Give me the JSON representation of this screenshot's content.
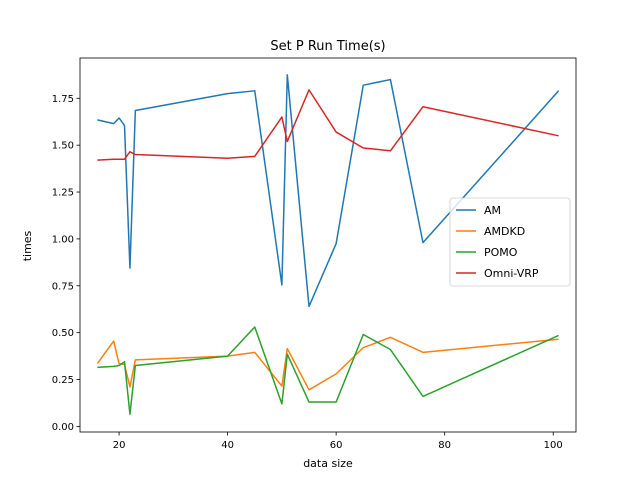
{
  "chart_data": {
    "type": "line",
    "title": "Set P Run Time(s)",
    "xlabel": "data size",
    "ylabel": "times",
    "xlim": [
      12.8,
      104.2
    ],
    "ylim": [
      -0.03,
      1.965
    ],
    "xticks": [
      20,
      40,
      60,
      80,
      100
    ],
    "yticks": [
      0.0,
      0.25,
      0.5,
      0.75,
      1.0,
      1.25,
      1.5,
      1.75
    ],
    "ytick_labels": [
      "0.00",
      "0.25",
      "0.50",
      "0.75",
      "1.00",
      "1.25",
      "1.50",
      "1.75"
    ],
    "grid": false,
    "legend_position": "center-right",
    "x": [
      16,
      19,
      20,
      21,
      22,
      23,
      40,
      45,
      50,
      51,
      55,
      60,
      65,
      70,
      76,
      101
    ],
    "series": [
      {
        "name": "AM",
        "color": "#1f77b4",
        "values": [
          1.635,
          1.615,
          1.645,
          1.605,
          0.845,
          1.685,
          1.775,
          1.79,
          0.755,
          1.875,
          0.64,
          0.975,
          1.82,
          1.85,
          0.98,
          1.79
        ]
      },
      {
        "name": "AMDKD",
        "color": "#ff7f0e",
        "values": [
          0.335,
          0.455,
          0.335,
          0.33,
          0.21,
          0.355,
          0.375,
          0.395,
          0.215,
          0.415,
          0.195,
          0.28,
          0.42,
          0.475,
          0.395,
          0.465
        ]
      },
      {
        "name": "POMO",
        "color": "#2ca02c",
        "values": [
          0.315,
          0.32,
          0.325,
          0.345,
          0.065,
          0.325,
          0.375,
          0.53,
          0.12,
          0.385,
          0.13,
          0.13,
          0.49,
          0.41,
          0.16,
          0.485
        ]
      },
      {
        "name": "Omni-VRP",
        "color": "#d62728",
        "values": [
          1.42,
          1.425,
          1.425,
          1.425,
          1.465,
          1.45,
          1.43,
          1.44,
          1.65,
          1.52,
          1.795,
          1.57,
          1.485,
          1.47,
          1.705,
          1.55
        ]
      }
    ]
  }
}
